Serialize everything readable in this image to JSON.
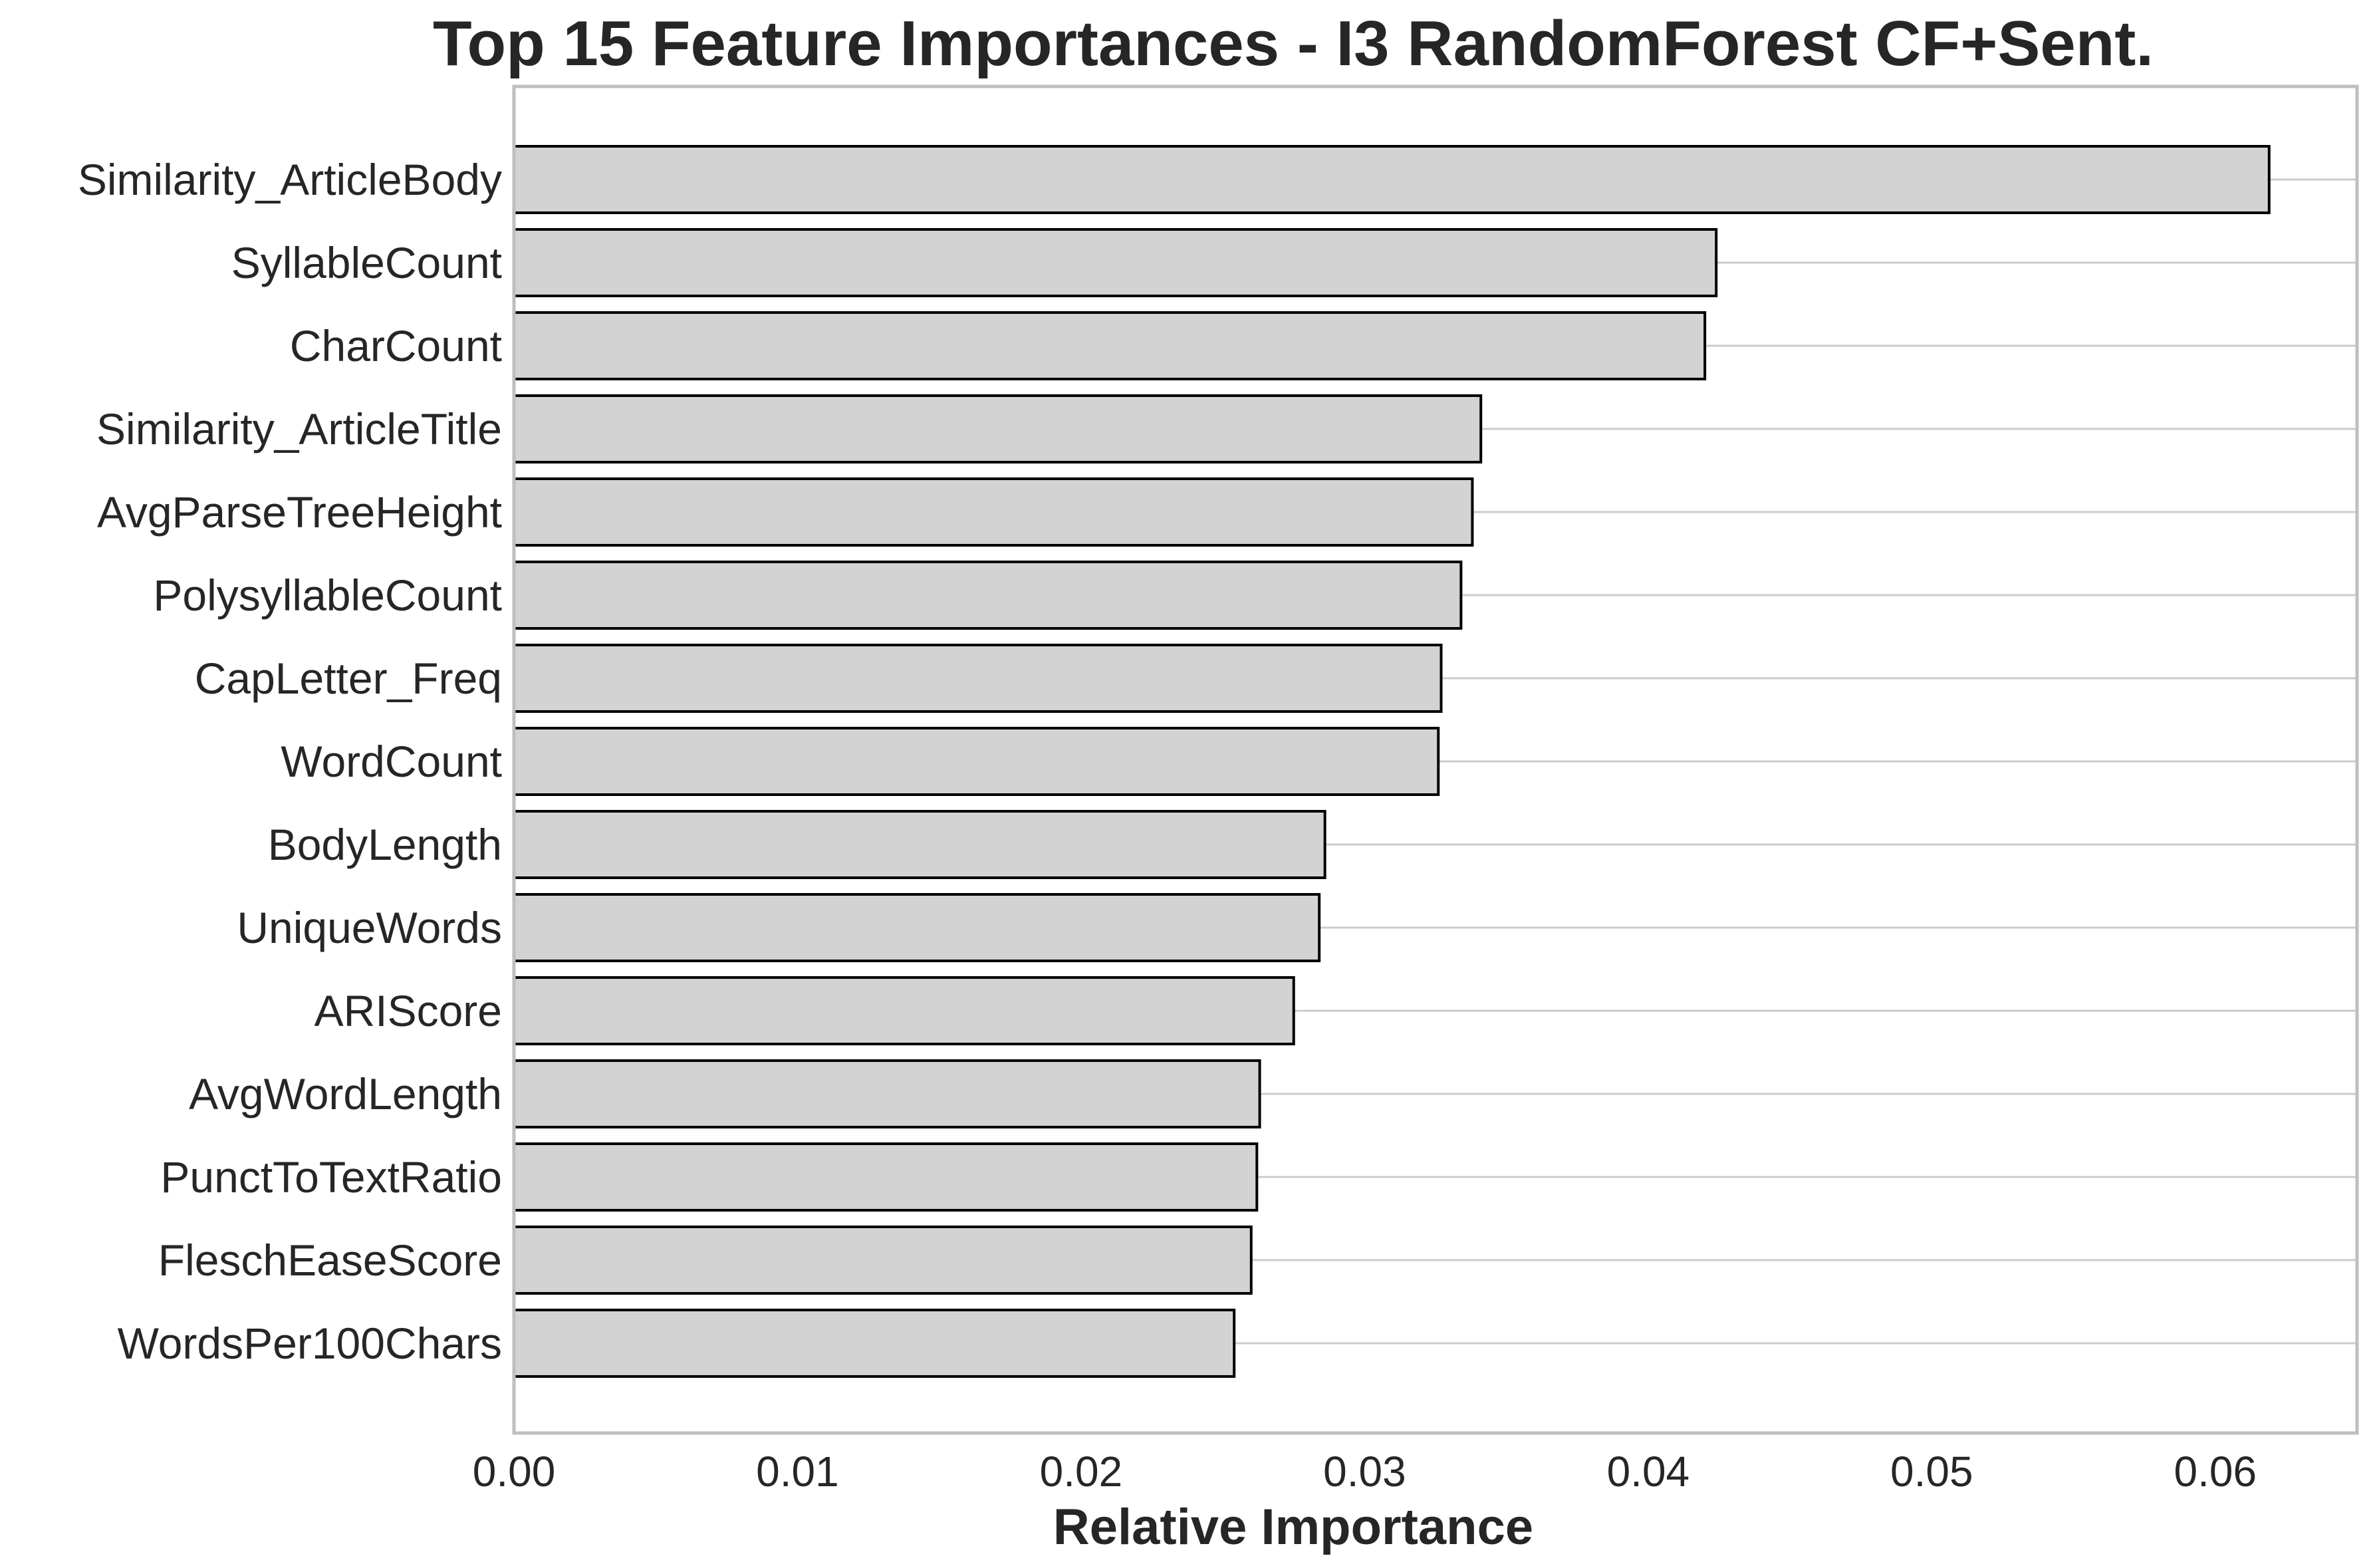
{
  "chart_data": {
    "type": "bar",
    "orientation": "horizontal",
    "title": "Top 15 Feature Importances - I3 RandomForest CF+Sent.",
    "xlabel": "Relative Importance",
    "ylabel": "",
    "xlim": [
      0,
      0.065
    ],
    "xticks": [
      0.0,
      0.01,
      0.02,
      0.03,
      0.04,
      0.05,
      0.06
    ],
    "xtick_labels": [
      "0.00",
      "0.01",
      "0.02",
      "0.03",
      "0.04",
      "0.05",
      "0.06"
    ],
    "grid": "horizontal",
    "legend": "none",
    "categories": [
      "Similarity_ArticleBody",
      "SyllableCount",
      "CharCount",
      "Similarity_ArticleTitle",
      "AvgParseTreeHeight",
      "PolysyllableCount",
      "CapLetter_Freq",
      "WordCount",
      "BodyLength",
      "UniqueWords",
      "ARIScore",
      "AvgWordLength",
      "PunctToTextRatio",
      "FleschEaseScore",
      "WordsPer100Chars"
    ],
    "values": [
      0.0619,
      0.0424,
      0.042,
      0.0341,
      0.0338,
      0.0334,
      0.0327,
      0.0326,
      0.0286,
      0.0284,
      0.0275,
      0.0263,
      0.0262,
      0.026,
      0.0254
    ],
    "colors": {
      "bar_fill": "#d3d3d3",
      "bar_edge": "#000000",
      "grid": "#cccccc",
      "spine": "#bfbfbf",
      "text": "#262626"
    }
  }
}
